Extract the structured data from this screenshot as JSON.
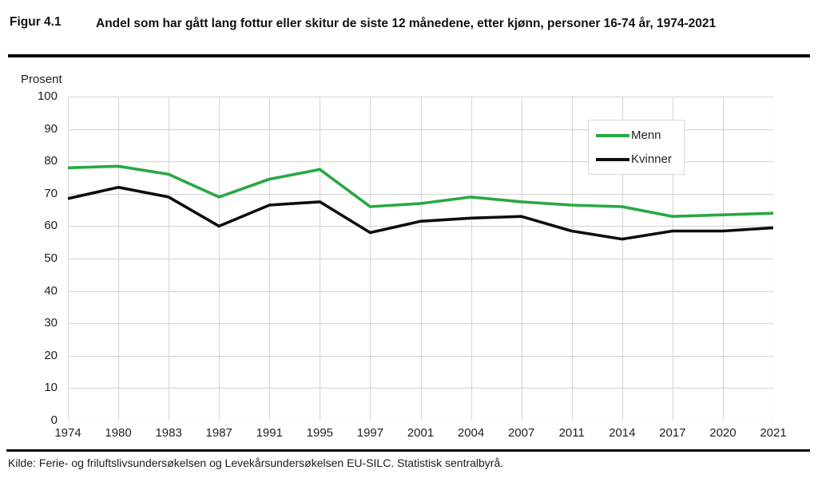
{
  "header": {
    "figure_label": "Figur 4.1",
    "title": "Andel som har gått lang fottur eller skitur de siste 12 månedene, etter kjønn, personer 16-74 år, 1974-2021"
  },
  "footer": {
    "source": "Kilde: Ferie- og friluftslivsundersøkelsen og Levekårsundersøkelsen EU-SILC. Statistisk sentralbyrå."
  },
  "colors": {
    "menn_line": "#28a843",
    "kvinner_line": "#0d0d0d",
    "grid": "#d9d9d9",
    "rule": "#000000"
  },
  "chart_data": {
    "type": "line",
    "title": "Andel som har gått lang fottur eller skitur de siste 12 månedene, etter kjønn, personer 16-74 år, 1974-2021",
    "xlabel": "",
    "ylabel": "Prosent",
    "ylim": [
      0,
      100
    ],
    "ytick_step": 10,
    "grid": true,
    "legend_position": "upper right",
    "categories": [
      "1974",
      "1980",
      "1983",
      "1987",
      "1991",
      "1995",
      "1997",
      "2001",
      "2004",
      "2007",
      "2011",
      "2014",
      "2017",
      "2020",
      "2021"
    ],
    "series": [
      {
        "name": "Menn",
        "color": "#28a843",
        "values": [
          78,
          78.5,
          76,
          69,
          74.5,
          77.5,
          66,
          67,
          69,
          67.5,
          66.5,
          66,
          63,
          63.5,
          64
        ]
      },
      {
        "name": "Kvinner",
        "color": "#0d0d0d",
        "values": [
          68.5,
          72,
          69,
          60,
          66.5,
          67.5,
          58,
          61.5,
          62.5,
          63,
          58.5,
          56,
          58.5,
          58.5,
          59.5
        ]
      }
    ]
  }
}
